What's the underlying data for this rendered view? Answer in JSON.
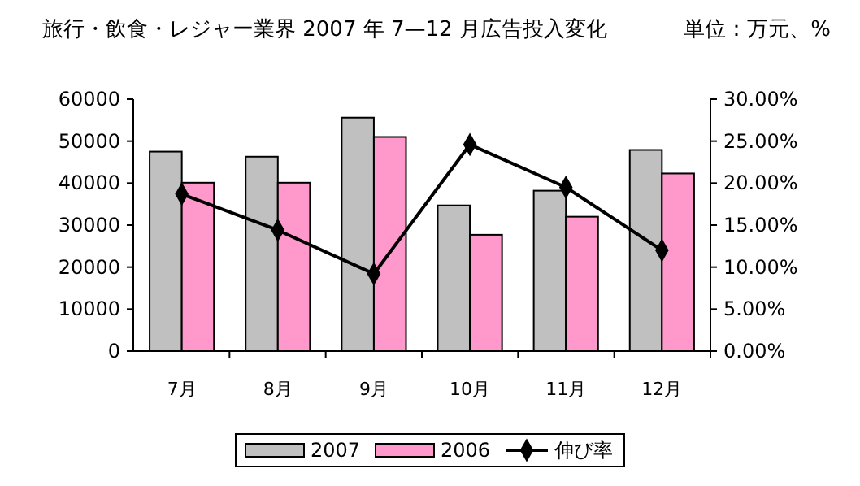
{
  "chart_data": {
    "type": "bar",
    "title": "旅行・飲食・レジャー業界 2007 年 7—12 月広告投入変化",
    "subtitle": "単位：万元、%",
    "categories": [
      "7月",
      "8月",
      "9月",
      "10月",
      "11月",
      "12月"
    ],
    "series": [
      {
        "name": "2007",
        "color": "#c0c0c0",
        "values": [
          47500,
          46300,
          55600,
          34700,
          38200,
          47900
        ]
      },
      {
        "name": "2006",
        "color": "#ff99cc",
        "values": [
          40100,
          40100,
          51000,
          27700,
          32000,
          42300
        ]
      },
      {
        "name": "伸び率",
        "type": "line",
        "axis": "y2",
        "color": "#000000",
        "marker": "diamond",
        "values": [
          18.7,
          14.4,
          9.2,
          24.6,
          19.5,
          12.0
        ]
      }
    ],
    "ylim": [
      0,
      60000
    ],
    "yticks": [
      0,
      10000,
      20000,
      30000,
      40000,
      50000,
      60000
    ],
    "y2lim": [
      0,
      30
    ],
    "y2ticks": [
      {
        "value": 0,
        "label": "0.00%"
      },
      {
        "value": 5,
        "label": "5.00%"
      },
      {
        "value": 10,
        "label": "10.00%"
      },
      {
        "value": 15,
        "label": "15.00%"
      },
      {
        "value": 20,
        "label": "20.00%"
      },
      {
        "value": 25,
        "label": "25.00%"
      },
      {
        "value": 30,
        "label": "30.00%"
      }
    ],
    "legend": "bottom",
    "grid": false
  }
}
